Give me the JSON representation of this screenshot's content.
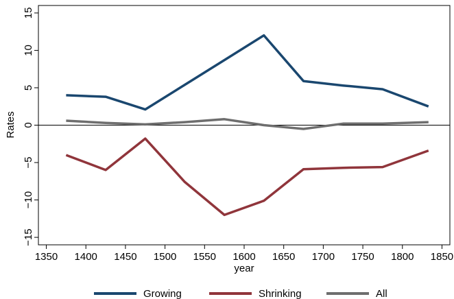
{
  "chart_data": {
    "type": "line",
    "xlabel": "year",
    "ylabel": "Rates",
    "xlim": [
      1340,
      1860
    ],
    "ylim": [
      -16,
      16
    ],
    "xticks": [
      1350,
      1400,
      1450,
      1500,
      1550,
      1600,
      1650,
      1700,
      1750,
      1800,
      1850
    ],
    "yticks": [
      -15,
      -10,
      -5,
      0,
      5,
      10,
      15
    ],
    "ytick_labels": [
      "−15",
      "−10",
      "−5",
      "0",
      "5",
      "10",
      "15"
    ],
    "x": [
      1375,
      1425,
      1475,
      1525,
      1575,
      1625,
      1675,
      1725,
      1775,
      1833
    ],
    "series": [
      {
        "name": "Growing",
        "color": "#1a476f",
        "values": [
          4.0,
          3.8,
          2.1,
          5.4,
          8.7,
          12.0,
          5.9,
          5.3,
          4.8,
          2.5
        ]
      },
      {
        "name": "Shrinking",
        "color": "#90353b",
        "values": [
          -4.0,
          -6.0,
          -1.8,
          -7.6,
          -12.0,
          -10.1,
          -5.9,
          -5.7,
          -5.6,
          -3.4
        ]
      },
      {
        "name": "All",
        "color": "#6e6e6e",
        "values": [
          0.6,
          0.3,
          0.1,
          0.4,
          0.8,
          0.0,
          -0.5,
          0.2,
          0.2,
          0.4
        ]
      }
    ],
    "zero_line": true,
    "grid": false,
    "legend_position": "bottom"
  }
}
